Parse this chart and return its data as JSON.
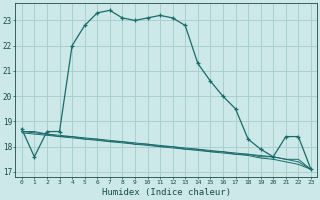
{
  "xlabel": "Humidex (Indice chaleur)",
  "ylabel": "",
  "bg_color": "#cce8e8",
  "grid_color": "#aacfcf",
  "line_color": "#1a6b6b",
  "hours": [
    0,
    1,
    2,
    3,
    4,
    5,
    6,
    7,
    8,
    9,
    10,
    11,
    12,
    13,
    14,
    15,
    16,
    17,
    18,
    19,
    20,
    21,
    22,
    23
  ],
  "main_line": [
    18.7,
    17.6,
    18.6,
    18.6,
    22.0,
    22.8,
    23.3,
    23.4,
    23.1,
    23.0,
    23.1,
    23.2,
    23.1,
    22.8,
    21.3,
    20.6,
    20.0,
    19.5,
    18.3,
    17.9,
    17.6,
    18.4,
    18.4,
    17.1
  ],
  "flat_line1": [
    18.6,
    18.6,
    18.5,
    18.4,
    18.4,
    18.3,
    18.3,
    18.2,
    18.2,
    18.1,
    18.1,
    18.0,
    18.0,
    17.9,
    17.9,
    17.8,
    17.8,
    17.7,
    17.7,
    17.6,
    17.6,
    17.5,
    17.5,
    17.1
  ],
  "flat_line2": [
    18.6,
    18.55,
    18.5,
    18.45,
    18.4,
    18.35,
    18.3,
    18.25,
    18.2,
    18.15,
    18.1,
    18.05,
    18.0,
    17.95,
    17.9,
    17.85,
    17.8,
    17.75,
    17.7,
    17.65,
    17.6,
    17.5,
    17.4,
    17.1
  ],
  "flat_line3": [
    18.55,
    18.5,
    18.45,
    18.4,
    18.35,
    18.3,
    18.25,
    18.2,
    18.15,
    18.1,
    18.05,
    18.0,
    17.95,
    17.9,
    17.85,
    17.8,
    17.75,
    17.7,
    17.65,
    17.55,
    17.5,
    17.4,
    17.3,
    17.1
  ],
  "ylim": [
    16.8,
    23.7
  ],
  "yticks": [
    17,
    18,
    19,
    20,
    21,
    22,
    23
  ],
  "xtick_labels": [
    "0",
    "1",
    "2",
    "3",
    "4",
    "5",
    "6",
    "7",
    "8",
    "9",
    "10",
    "11",
    "12",
    "13",
    "14",
    "15",
    "16",
    "17",
    "18",
    "19",
    "20",
    "21",
    "22",
    "23"
  ]
}
